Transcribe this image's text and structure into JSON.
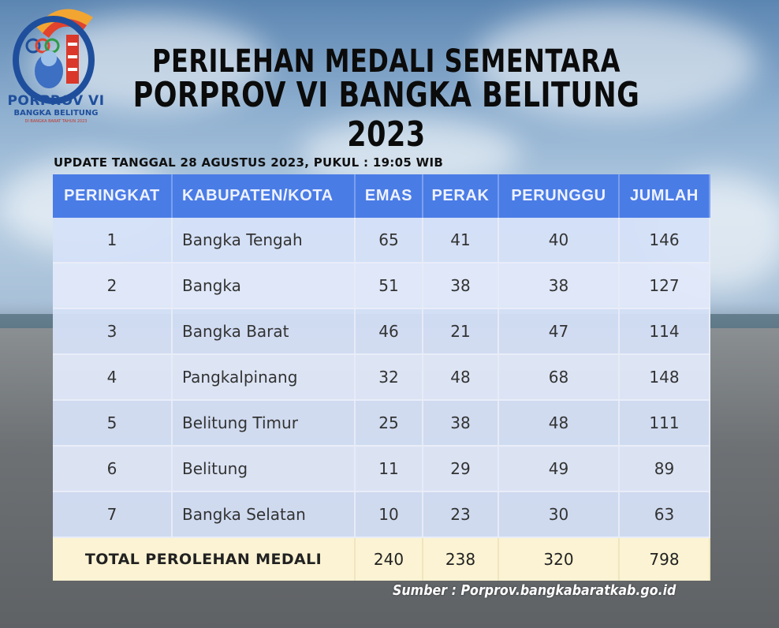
{
  "logo": {
    "title": "PORPROV VI",
    "subtitle": "BANGKA BELITUNG",
    "tagline": "DI BANGKA BARAT TAHUN 2023"
  },
  "header": {
    "title_line1": "PERILEHAN MEDALI SEMENTARA",
    "title_line2": "PORPROV VI BANGKA BELITUNG 2023",
    "update": "UPDATE TANGGAL 28 AGUSTUS 2023, PUKUL : 19:05 WIB"
  },
  "table": {
    "columns": [
      "PERINGKAT",
      "KABUPATEN/KOTA",
      "EMAS",
      "PERAK",
      "PERUNGGU",
      "JUMLAH"
    ],
    "rows": [
      [
        "1",
        "Bangka Tengah",
        "65",
        "41",
        "40",
        "146"
      ],
      [
        "2",
        "Bangka",
        "51",
        "38",
        "38",
        "127"
      ],
      [
        "3",
        "Bangka Barat",
        "46",
        "21",
        "47",
        "114"
      ],
      [
        "4",
        "Pangkalpinang",
        "32",
        "48",
        "68",
        "148"
      ],
      [
        "5",
        "Belitung Timur",
        "25",
        "38",
        "48",
        "111"
      ],
      [
        "6",
        "Belitung",
        "11",
        "29",
        "49",
        "89"
      ],
      [
        "7",
        "Bangka Selatan",
        "10",
        "23",
        "30",
        "63"
      ]
    ],
    "total": {
      "label": "TOTAL PEROLEHAN MEDALI",
      "emas": "240",
      "perak": "238",
      "perunggu": "320",
      "jumlah": "798"
    }
  },
  "source": "Sumber : Porprov.bangkabaratkab.go.id",
  "colors": {
    "header_bg": "#4a7ce6",
    "row_bg": "#d6e1f8",
    "total_bg": "#fbf3d3",
    "logo_blue": "#1f4f9c"
  }
}
